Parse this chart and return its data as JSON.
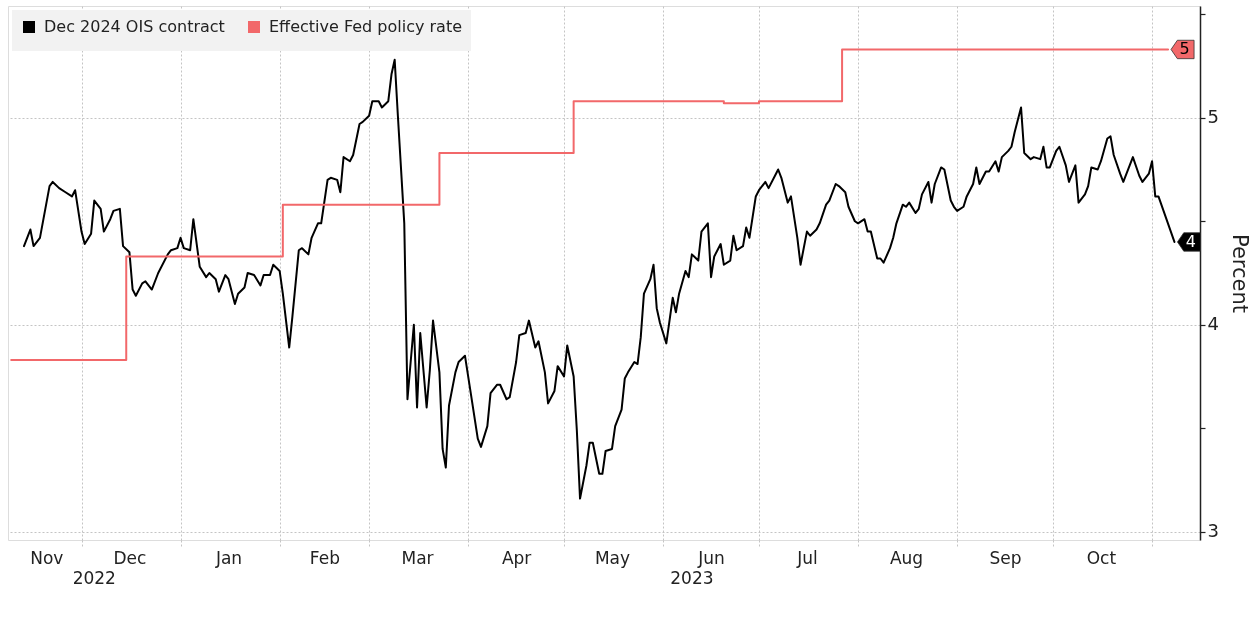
{
  "chart_data": {
    "type": "line",
    "ylabel": "Percent",
    "legend": "top left",
    "grid": true,
    "xlim": [
      "2022-11-08",
      "2023-11-16"
    ],
    "xticks": [
      {
        "value": "2022-11-20",
        "label": "Nov"
      },
      {
        "value": "2022-12-01",
        "label": null
      },
      {
        "value": "2022-12-16",
        "label": "Dec"
      },
      {
        "value": "2023-01-01",
        "label": null
      },
      {
        "value": "2023-01-16",
        "label": "Jan"
      },
      {
        "value": "2023-02-01",
        "label": null
      },
      {
        "value": "2023-02-15",
        "label": "Feb"
      },
      {
        "value": "2023-03-01",
        "label": null
      },
      {
        "value": "2023-03-16",
        "label": "Mar"
      },
      {
        "value": "2023-04-01",
        "label": null
      },
      {
        "value": "2023-04-16",
        "label": "Apr"
      },
      {
        "value": "2023-05-01",
        "label": null
      },
      {
        "value": "2023-05-16",
        "label": "May"
      },
      {
        "value": "2023-06-01",
        "label": null
      },
      {
        "value": "2023-06-16",
        "label": "Jun"
      },
      {
        "value": "2023-07-01",
        "label": null
      },
      {
        "value": "2023-07-16",
        "label": "Jul"
      },
      {
        "value": "2023-08-01",
        "label": null
      },
      {
        "value": "2023-08-16",
        "label": "Aug"
      },
      {
        "value": "2023-09-01",
        "label": null
      },
      {
        "value": "2023-09-16",
        "label": "Sep"
      },
      {
        "value": "2023-10-01",
        "label": null
      },
      {
        "value": "2023-10-16",
        "label": "Oct"
      },
      {
        "value": "2023-11-01",
        "label": null
      }
    ],
    "x2lim": [
      "2022-11-08",
      "2023-11-16"
    ],
    "x2ticks": [
      {
        "value": "2022-12-05",
        "label": "2022"
      },
      {
        "value": "2023-06-10",
        "label": "2023"
      }
    ],
    "ylim": [
      2.96,
      5.54
    ],
    "yticks": [
      3,
      {
        "value": 3.5,
        "label": null
      },
      4,
      {
        "value": 4.5,
        "label": null
      },
      5,
      {
        "value": 5.5,
        "label": null
      }
    ],
    "series": [
      {
        "name": "Dec 2024 OIS contract",
        "color": "#000000",
        "x": [
          "2022-11-13",
          "2022-11-15",
          "2022-11-16",
          "2022-11-18",
          "2022-11-21",
          "2022-11-22",
          "2022-11-24",
          "2022-11-26",
          "2022-11-28",
          "2022-11-29",
          "2022-12-01",
          "2022-12-02",
          "2022-12-04",
          "2022-12-05",
          "2022-12-07",
          "2022-12-08",
          "2022-12-10",
          "2022-12-11",
          "2022-12-13",
          "2022-12-14",
          "2022-12-16",
          "2022-12-17",
          "2022-12-18",
          "2022-12-20",
          "2022-12-21",
          "2022-12-23",
          "2022-12-25",
          "2022-12-28",
          "2022-12-29",
          "2022-12-31",
          "2023-01-01",
          "2023-01-02",
          "2023-01-04",
          "2023-01-05",
          "2023-01-07",
          "2023-01-09",
          "2023-01-10",
          "2023-01-12",
          "2023-01-13",
          "2023-01-15",
          "2023-01-16",
          "2023-01-18",
          "2023-01-19",
          "2023-01-21",
          "2023-01-22",
          "2023-01-24",
          "2023-01-26",
          "2023-01-27",
          "2023-01-29",
          "2023-01-30",
          "2023-02-01",
          "2023-02-02",
          "2023-02-04",
          "2023-02-05",
          "2023-02-07",
          "2023-02-08",
          "2023-02-10",
          "2023-02-11",
          "2023-02-13",
          "2023-02-14",
          "2023-02-16",
          "2023-02-17",
          "2023-02-19",
          "2023-02-20",
          "2023-02-21",
          "2023-02-23",
          "2023-02-24",
          "2023-02-26",
          "2023-02-27",
          "2023-03-01",
          "2023-03-02",
          "2023-03-04",
          "2023-03-05",
          "2023-03-07",
          "2023-03-08",
          "2023-03-09",
          "2023-03-10",
          "2023-03-12",
          "2023-03-13",
          "2023-03-15",
          "2023-03-16",
          "2023-03-17",
          "2023-03-19",
          "2023-03-20",
          "2023-03-21",
          "2023-03-23",
          "2023-03-24",
          "2023-03-25",
          "2023-03-26",
          "2023-03-28",
          "2023-03-29",
          "2023-03-31",
          "2023-04-02",
          "2023-04-04",
          "2023-04-05",
          "2023-04-07",
          "2023-04-08",
          "2023-04-10",
          "2023-04-11",
          "2023-04-13",
          "2023-04-14",
          "2023-04-16",
          "2023-04-17",
          "2023-04-19",
          "2023-04-20",
          "2023-04-22",
          "2023-04-23",
          "2023-04-25",
          "2023-04-26",
          "2023-04-28",
          "2023-04-29",
          "2023-05-01",
          "2023-05-02",
          "2023-05-04",
          "2023-05-05",
          "2023-05-06",
          "2023-05-08",
          "2023-05-09",
          "2023-05-10",
          "2023-05-12",
          "2023-05-13",
          "2023-05-14",
          "2023-05-16",
          "2023-05-17",
          "2023-05-19",
          "2023-05-20",
          "2023-05-21",
          "2023-05-23",
          "2023-05-24",
          "2023-05-25",
          "2023-05-26",
          "2023-05-28",
          "2023-05-29",
          "2023-05-30",
          "2023-05-31",
          "2023-06-02",
          "2023-06-04",
          "2023-06-05",
          "2023-06-06",
          "2023-06-08",
          "2023-06-09",
          "2023-06-10",
          "2023-06-12",
          "2023-06-13",
          "2023-06-15",
          "2023-06-16",
          "2023-06-17",
          "2023-06-19",
          "2023-06-20",
          "2023-06-22",
          "2023-06-23",
          "2023-06-24",
          "2023-06-26",
          "2023-06-27",
          "2023-06-28",
          "2023-06-30",
          "2023-07-01",
          "2023-07-03",
          "2023-07-04",
          "2023-07-06",
          "2023-07-07",
          "2023-07-08",
          "2023-07-10",
          "2023-07-11",
          "2023-07-13",
          "2023-07-14",
          "2023-07-16",
          "2023-07-17",
          "2023-07-19",
          "2023-07-20",
          "2023-07-22",
          "2023-07-23",
          "2023-07-25",
          "2023-07-26",
          "2023-07-28",
          "2023-07-29",
          "2023-07-31",
          "2023-08-01",
          "2023-08-03",
          "2023-08-04",
          "2023-08-05",
          "2023-08-07",
          "2023-08-08",
          "2023-08-09",
          "2023-08-11",
          "2023-08-12",
          "2023-08-13",
          "2023-08-15",
          "2023-08-16",
          "2023-08-17",
          "2023-08-19",
          "2023-08-20",
          "2023-08-21",
          "2023-08-23",
          "2023-08-24",
          "2023-08-25",
          "2023-08-27",
          "2023-08-28",
          "2023-08-30",
          "2023-08-31",
          "2023-09-01",
          "2023-09-03",
          "2023-09-04",
          "2023-09-06",
          "2023-09-07",
          "2023-09-08",
          "2023-09-10",
          "2023-09-11",
          "2023-09-13",
          "2023-09-14",
          "2023-09-15",
          "2023-09-17",
          "2023-09-18",
          "2023-09-19",
          "2023-09-21",
          "2023-09-22",
          "2023-09-24",
          "2023-09-25",
          "2023-09-27",
          "2023-09-28",
          "2023-09-29",
          "2023-09-30",
          "2023-10-02",
          "2023-10-03",
          "2023-10-05",
          "2023-10-06",
          "2023-10-08",
          "2023-10-09",
          "2023-10-11",
          "2023-10-12",
          "2023-10-13",
          "2023-10-15",
          "2023-10-16",
          "2023-10-18",
          "2023-10-19",
          "2023-10-20",
          "2023-10-22",
          "2023-10-23",
          "2023-10-25",
          "2023-10-26",
          "2023-10-28",
          "2023-10-29",
          "2023-10-31",
          "2023-11-01",
          "2023-11-02",
          "2023-11-03",
          "2023-11-08"
        ],
        "values": [
          4.38,
          4.46,
          4.38,
          4.42,
          4.67,
          4.69,
          4.66,
          4.64,
          4.62,
          4.65,
          4.45,
          4.39,
          4.44,
          4.6,
          4.56,
          4.45,
          4.51,
          4.55,
          4.56,
          4.38,
          4.35,
          4.17,
          4.14,
          4.2,
          4.21,
          4.17,
          4.25,
          4.34,
          4.36,
          4.37,
          4.42,
          4.37,
          4.36,
          4.51,
          4.28,
          4.23,
          4.25,
          4.22,
          4.16,
          4.24,
          4.22,
          4.1,
          4.15,
          4.18,
          4.25,
          4.24,
          4.19,
          4.24,
          4.24,
          4.29,
          4.26,
          4.15,
          3.89,
          4.04,
          4.36,
          4.37,
          4.34,
          4.42,
          4.49,
          4.49,
          4.7,
          4.71,
          4.7,
          4.64,
          4.81,
          4.79,
          4.82,
          4.97,
          4.98,
          5.01,
          5.08,
          5.08,
          5.05,
          5.08,
          5.21,
          5.28,
          5.01,
          4.49,
          3.64,
          4.0,
          3.6,
          3.96,
          3.6,
          3.78,
          4.02,
          3.77,
          3.4,
          3.31,
          3.61,
          3.77,
          3.82,
          3.85,
          3.65,
          3.45,
          3.41,
          3.51,
          3.67,
          3.71,
          3.71,
          3.64,
          3.65,
          3.82,
          3.95,
          3.96,
          4.02,
          3.89,
          3.92,
          3.77,
          3.62,
          3.68,
          3.8,
          3.75,
          3.9,
          3.75,
          3.49,
          3.16,
          3.32,
          3.43,
          3.43,
          3.28,
          3.28,
          3.39,
          3.4,
          3.51,
          3.59,
          3.74,
          3.77,
          3.82,
          3.81,
          3.94,
          4.15,
          4.22,
          4.29,
          4.08,
          4.01,
          3.91,
          4.13,
          4.06,
          4.15,
          4.26,
          4.23,
          4.34,
          4.31,
          4.45,
          4.49,
          4.23,
          4.33,
          4.39,
          4.29,
          4.31,
          4.43,
          4.36,
          4.38,
          4.47,
          4.42,
          4.62,
          4.65,
          4.69,
          4.66,
          4.72,
          4.75,
          4.71,
          4.59,
          4.62,
          4.42,
          4.29,
          4.45,
          4.43,
          4.46,
          4.49,
          4.58,
          4.6,
          4.68,
          4.67,
          4.64,
          4.57,
          4.5,
          4.49,
          4.51,
          4.45,
          4.45,
          4.32,
          4.32,
          4.3,
          4.37,
          4.42,
          4.49,
          4.58,
          4.57,
          4.59,
          4.54,
          4.56,
          4.63,
          4.69,
          4.59,
          4.68,
          4.76,
          4.75,
          4.6,
          4.57,
          4.55,
          4.57,
          4.62,
          4.68,
          4.76,
          4.68,
          4.74,
          4.74,
          4.79,
          4.74,
          4.81,
          4.84,
          4.86,
          4.93,
          5.05,
          4.83,
          4.8,
          4.81,
          4.8,
          4.86,
          4.76,
          4.76,
          4.84,
          4.86,
          4.77,
          4.69,
          4.77,
          4.59,
          4.63,
          4.67,
          4.76,
          4.75,
          4.79,
          4.9,
          4.91,
          4.82,
          4.73,
          4.69,
          4.77,
          4.81,
          4.72,
          4.69,
          4.73,
          4.79,
          4.62,
          4.62,
          4.4
        ],
        "value_labels": [
          null,
          null,
          null,
          null,
          null,
          null,
          null,
          null,
          null,
          null,
          null,
          null,
          null,
          null,
          null,
          null,
          null,
          null,
          null,
          null,
          null,
          null,
          null,
          null,
          null,
          null,
          null,
          null,
          null,
          null,
          null,
          null,
          null,
          null,
          null,
          null,
          null,
          null,
          null,
          null,
          null,
          null,
          null,
          null,
          null,
          null,
          null,
          null,
          null,
          null,
          null,
          null,
          null,
          null,
          null,
          null,
          null,
          null,
          null,
          null,
          null,
          null,
          null,
          null,
          null,
          null,
          null,
          null,
          null,
          null,
          null,
          null,
          null,
          null,
          null,
          null,
          null,
          null,
          null,
          null,
          null,
          null,
          null,
          null,
          null,
          null,
          null,
          null,
          null,
          null,
          null,
          null,
          null,
          null,
          null,
          null,
          null,
          null,
          null,
          null,
          null,
          null,
          null,
          null,
          null,
          null,
          null,
          null,
          null,
          null,
          null,
          null,
          null,
          null,
          null,
          null,
          null,
          null,
          null,
          null,
          null,
          null,
          null,
          null,
          null,
          null,
          null,
          null,
          null,
          null,
          null,
          null,
          null,
          null,
          null,
          null,
          null,
          null,
          null,
          null,
          null,
          null,
          null,
          null,
          null,
          null,
          null,
          null,
          null,
          null,
          null,
          null,
          null,
          null,
          null,
          null,
          null,
          null,
          null,
          null,
          null,
          null,
          null,
          null,
          null,
          null,
          null,
          null,
          null,
          null,
          null,
          null,
          null,
          null,
          null,
          null,
          null,
          null,
          null,
          null,
          null,
          null,
          null,
          null,
          null,
          null,
          null,
          null,
          null,
          null,
          null,
          null,
          null,
          null,
          null,
          null,
          null,
          null,
          null,
          null,
          null,
          null,
          null,
          null,
          null,
          null,
          null,
          null,
          null,
          null,
          null,
          null,
          null,
          null,
          null,
          null,
          null,
          null,
          null,
          null,
          null,
          null,
          null,
          null,
          null,
          null,
          null,
          null,
          null,
          null,
          null,
          null,
          null,
          null,
          null,
          null,
          null,
          null,
          null,
          null,
          null,
          null,
          null,
          null,
          null,
          null,
          "4"
        ]
      },
      {
        "name": "Effective Fed policy rate",
        "color": "#f2686a",
        "type": "step",
        "x": [
          "2022-11-09",
          "2022-12-15",
          "2023-02-02",
          "2023-03-23",
          "2023-05-04",
          "2023-06-20",
          "2023-07-01",
          "2023-07-27",
          "2023-11-06"
        ],
        "values": [
          3.83,
          4.33,
          4.58,
          4.83,
          5.08,
          5.07,
          5.08,
          5.33,
          5.33
        ],
        "value_labels": [
          null,
          null,
          null,
          null,
          null,
          null,
          null,
          null,
          "5"
        ]
      }
    ]
  }
}
